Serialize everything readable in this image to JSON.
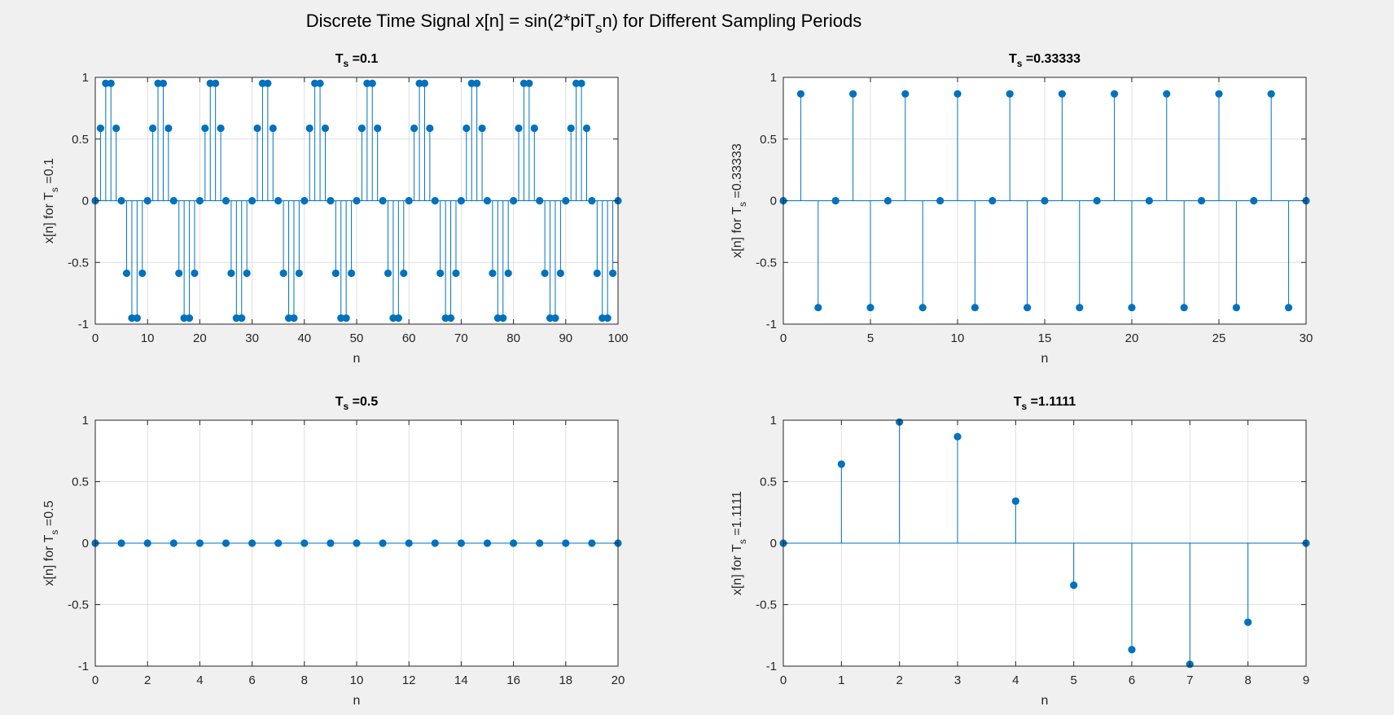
{
  "figure": {
    "suptitle": {
      "prefix": "Discrete Time Signal x[n] = sin(2*piT",
      "sub": "s",
      "suffix": "n) for Different Sampling Periods"
    },
    "background": "#f0f0f0",
    "axes_background": "#ffffff",
    "stem_color": "#0072bd",
    "grid_color": "#dfdfdf"
  },
  "chart_data": [
    {
      "type": "stem",
      "title": {
        "main": "T",
        "sub": "s",
        "value": " =0.1"
      },
      "ylabel": {
        "prefix": "x[n] for T",
        "sub": "s",
        "suffix": " =0.1"
      },
      "xlabel": "n",
      "xlim": [
        0,
        100
      ],
      "ylim": [
        -1,
        1
      ],
      "xticks": [
        0,
        10,
        20,
        30,
        40,
        50,
        60,
        70,
        80,
        90,
        100
      ],
      "yticks": [
        -1,
        -0.5,
        0,
        0.5,
        1
      ],
      "grid": true,
      "x": [
        0,
        1,
        2,
        3,
        4,
        5,
        6,
        7,
        8,
        9,
        10,
        11,
        12,
        13,
        14,
        15,
        16,
        17,
        18,
        19,
        20,
        21,
        22,
        23,
        24,
        25,
        26,
        27,
        28,
        29,
        30,
        31,
        32,
        33,
        34,
        35,
        36,
        37,
        38,
        39,
        40,
        41,
        42,
        43,
        44,
        45,
        46,
        47,
        48,
        49,
        50,
        51,
        52,
        53,
        54,
        55,
        56,
        57,
        58,
        59,
        60,
        61,
        62,
        63,
        64,
        65,
        66,
        67,
        68,
        69,
        70,
        71,
        72,
        73,
        74,
        75,
        76,
        77,
        78,
        79,
        80,
        81,
        82,
        83,
        84,
        85,
        86,
        87,
        88,
        89,
        90,
        91,
        92,
        93,
        94,
        95,
        96,
        97,
        98,
        99,
        100
      ],
      "y": [
        0,
        0.5878,
        0.9511,
        0.9511,
        0.5878,
        0,
        -0.5878,
        -0.9511,
        -0.9511,
        -0.5878,
        0,
        0.5878,
        0.9511,
        0.9511,
        0.5878,
        0,
        -0.5878,
        -0.9511,
        -0.9511,
        -0.5878,
        0,
        0.5878,
        0.9511,
        0.9511,
        0.5878,
        0,
        -0.5878,
        -0.9511,
        -0.9511,
        -0.5878,
        0,
        0.5878,
        0.9511,
        0.9511,
        0.5878,
        0,
        -0.5878,
        -0.9511,
        -0.9511,
        -0.5878,
        0,
        0.5878,
        0.9511,
        0.9511,
        0.5878,
        0,
        -0.5878,
        -0.9511,
        -0.9511,
        -0.5878,
        0,
        0.5878,
        0.9511,
        0.9511,
        0.5878,
        0,
        -0.5878,
        -0.9511,
        -0.9511,
        -0.5878,
        0,
        0.5878,
        0.9511,
        0.9511,
        0.5878,
        0,
        -0.5878,
        -0.9511,
        -0.9511,
        -0.5878,
        0,
        0.5878,
        0.9511,
        0.9511,
        0.5878,
        0,
        -0.5878,
        -0.9511,
        -0.9511,
        -0.5878,
        0,
        0.5878,
        0.9511,
        0.9511,
        0.5878,
        0,
        -0.5878,
        -0.9511,
        -0.9511,
        -0.5878,
        0,
        0.5878,
        0.9511,
        0.9511,
        0.5878,
        0,
        -0.5878,
        -0.9511,
        -0.9511,
        -0.5878,
        0
      ]
    },
    {
      "type": "stem",
      "title": {
        "main": "T",
        "sub": "s",
        "value": " =0.33333"
      },
      "ylabel": {
        "prefix": "x[n] for T",
        "sub": "s",
        "suffix": " =0.33333"
      },
      "xlabel": "n",
      "xlim": [
        0,
        30
      ],
      "ylim": [
        -1,
        1
      ],
      "xticks": [
        0,
        5,
        10,
        15,
        20,
        25,
        30
      ],
      "yticks": [
        -1,
        -0.5,
        0,
        0.5,
        1
      ],
      "grid": true,
      "x": [
        0,
        1,
        2,
        3,
        4,
        5,
        6,
        7,
        8,
        9,
        10,
        11,
        12,
        13,
        14,
        15,
        16,
        17,
        18,
        19,
        20,
        21,
        22,
        23,
        24,
        25,
        26,
        27,
        28,
        29,
        30
      ],
      "y": [
        0,
        0.866,
        -0.866,
        0,
        0.866,
        -0.866,
        0,
        0.866,
        -0.866,
        0,
        0.866,
        -0.866,
        0,
        0.866,
        -0.866,
        0,
        0.866,
        -0.866,
        0,
        0.866,
        -0.866,
        0,
        0.866,
        -0.866,
        0,
        0.866,
        -0.866,
        0,
        0.866,
        -0.866,
        0
      ]
    },
    {
      "type": "stem",
      "title": {
        "main": "T",
        "sub": "s",
        "value": " =0.5"
      },
      "ylabel": {
        "prefix": "x[n] for T",
        "sub": "s",
        "suffix": " =0.5"
      },
      "xlabel": "n",
      "xlim": [
        0,
        20
      ],
      "ylim": [
        -1,
        1
      ],
      "xticks": [
        0,
        2,
        4,
        6,
        8,
        10,
        12,
        14,
        16,
        18,
        20
      ],
      "yticks": [
        -1,
        -0.5,
        0,
        0.5,
        1
      ],
      "grid": true,
      "x": [
        0,
        1,
        2,
        3,
        4,
        5,
        6,
        7,
        8,
        9,
        10,
        11,
        12,
        13,
        14,
        15,
        16,
        17,
        18,
        19,
        20
      ],
      "y": [
        0,
        0,
        0,
        0,
        0,
        0,
        0,
        0,
        0,
        0,
        0,
        0,
        0,
        0,
        0,
        0,
        0,
        0,
        0,
        0,
        0
      ]
    },
    {
      "type": "stem",
      "title": {
        "main": "T",
        "sub": "s",
        "value": " =1.1111"
      },
      "ylabel": {
        "prefix": "x[n] for T",
        "sub": "s",
        "suffix": " =1.1111"
      },
      "xlabel": "n",
      "xlim": [
        0,
        9
      ],
      "ylim": [
        -1,
        1
      ],
      "xticks": [
        0,
        1,
        2,
        3,
        4,
        5,
        6,
        7,
        8,
        9
      ],
      "yticks": [
        -1,
        -0.5,
        0,
        0.5,
        1
      ],
      "grid": true,
      "x": [
        0,
        1,
        2,
        3,
        4,
        5,
        6,
        7,
        8,
        9
      ],
      "y": [
        0,
        0.6428,
        0.9848,
        0.866,
        0.342,
        -0.342,
        -0.866,
        -0.9848,
        -0.6428,
        0
      ]
    }
  ]
}
